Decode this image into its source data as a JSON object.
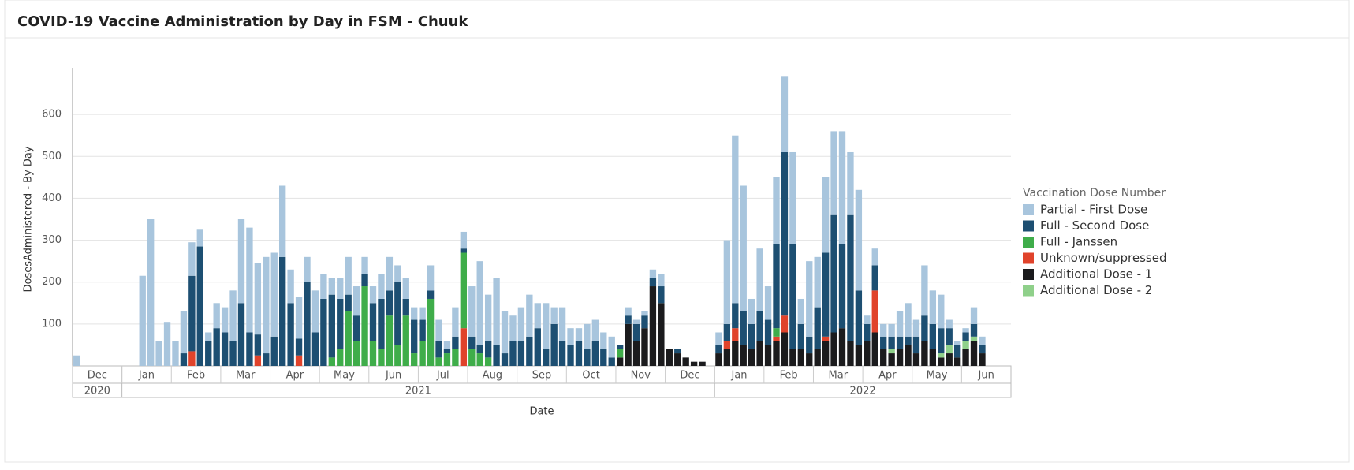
{
  "chart_data": {
    "type": "bar",
    "stacked": true,
    "title": "COVID-19 Vaccine Administration by Day in FSM - Chuuk",
    "x_label": "Date",
    "y_label": "DosesAdministered - By Day",
    "legend_title": "Vaccination Dose Number",
    "legend_position": "right",
    "grid": true,
    "ylim": [
      0,
      700
    ],
    "yticks": [
      100,
      200,
      300,
      400,
      500,
      600
    ],
    "x_groups": [
      {
        "year": "2020",
        "months": [
          "Dec"
        ]
      },
      {
        "year": "2021",
        "months": [
          "Jan",
          "Feb",
          "Mar",
          "Apr",
          "May",
          "Jun",
          "Jul",
          "Aug",
          "Sep",
          "Oct",
          "Nov",
          "Dec"
        ]
      },
      {
        "year": "2022",
        "months": [
          "Jan",
          "Feb",
          "Mar",
          "Apr",
          "May",
          "Jun"
        ]
      }
    ],
    "series": [
      {
        "name": "Partial - First Dose",
        "color": "#a8c5dd",
        "values": [
          [
            25,
            0,
            0,
            0,
            0,
            0
          ],
          [
            0,
            0,
            215,
            350,
            60,
            105
          ],
          [
            60,
            100,
            80,
            40,
            20,
            60
          ],
          [
            60,
            120,
            200,
            250,
            170,
            230
          ],
          [
            200,
            170,
            80,
            100,
            60,
            100
          ],
          [
            60,
            40,
            50,
            90,
            70,
            40
          ],
          [
            40,
            60,
            80,
            40,
            50,
            30
          ],
          [
            30,
            60,
            50,
            20,
            70,
            40
          ],
          [
            120,
            200,
            110,
            160,
            100,
            60
          ],
          [
            80,
            100,
            60,
            110,
            40,
            80
          ],
          [
            40,
            30,
            60,
            50,
            40,
            50
          ],
          [
            0,
            20,
            10,
            10,
            20,
            30
          ],
          [
            0,
            0,
            0,
            0,
            0,
            0
          ],
          [
            30,
            200,
            400,
            300,
            60,
            150
          ],
          [
            80,
            160,
            180,
            220,
            60,
            180
          ],
          [
            120,
            180,
            200,
            270,
            150,
            240
          ],
          [
            20,
            40,
            30,
            30,
            60,
            80
          ],
          [
            40,
            120,
            80,
            80,
            20,
            10
          ],
          [
            10,
            40,
            20,
            0,
            0,
            0
          ]
        ]
      },
      {
        "name": "Full - Second Dose",
        "color": "#1d4f72",
        "values": [
          [
            0,
            0,
            0,
            0,
            0,
            0
          ],
          [
            0,
            0,
            0,
            0,
            0,
            0
          ],
          [
            0,
            30,
            180,
            285,
            60,
            90
          ],
          [
            80,
            60,
            150,
            80,
            50,
            30
          ],
          [
            70,
            260,
            150,
            40,
            200,
            80
          ],
          [
            160,
            150,
            120,
            40,
            60,
            30
          ],
          [
            90,
            120,
            60,
            150,
            40,
            80
          ],
          [
            50,
            20,
            40,
            10,
            30,
            10
          ],
          [
            30,
            20,
            40,
            50,
            30,
            60
          ],
          [
            60,
            70,
            90,
            40,
            100,
            60
          ],
          [
            50,
            60,
            40,
            60,
            40,
            20
          ],
          [
            10,
            20,
            40,
            30,
            20,
            40
          ],
          [
            0,
            10,
            0,
            0,
            0,
            0
          ],
          [
            20,
            40,
            60,
            80,
            60,
            70
          ],
          [
            60,
            200,
            390,
            250,
            60,
            40
          ],
          [
            100,
            200,
            280,
            200,
            300,
            130
          ],
          [
            40,
            60,
            30,
            30,
            30,
            20
          ],
          [
            40,
            60,
            60,
            60,
            40,
            30
          ],
          [
            20,
            30,
            20,
            0,
            0,
            0
          ]
        ]
      },
      {
        "name": "Full - Janssen",
        "color": "#3fad4a",
        "values": [
          [
            0,
            0,
            0,
            0,
            0,
            0
          ],
          [
            0,
            0,
            0,
            0,
            0,
            0
          ],
          [
            0,
            0,
            0,
            0,
            0,
            0
          ],
          [
            0,
            0,
            0,
            0,
            0,
            0
          ],
          [
            0,
            0,
            0,
            0,
            0,
            0
          ],
          [
            0,
            20,
            40,
            130,
            60,
            190
          ],
          [
            60,
            40,
            120,
            50,
            120,
            30
          ],
          [
            60,
            160,
            20,
            30,
            40,
            180
          ],
          [
            40,
            30,
            20,
            0,
            0,
            0
          ],
          [
            0,
            0,
            0,
            0,
            0,
            0
          ],
          [
            0,
            0,
            0,
            0,
            0,
            0
          ],
          [
            20,
            0,
            0,
            0,
            0,
            0
          ],
          [
            0,
            0,
            0,
            0,
            0,
            0
          ],
          [
            0,
            0,
            0,
            0,
            0,
            0
          ],
          [
            0,
            20,
            0,
            0,
            0,
            0
          ],
          [
            0,
            0,
            0,
            0,
            0,
            0
          ],
          [
            0,
            0,
            0,
            0,
            0,
            0
          ],
          [
            0,
            0,
            0,
            0,
            0,
            0
          ],
          [
            0,
            0,
            0,
            0,
            0,
            0
          ]
        ]
      },
      {
        "name": "Unknown/suppressed",
        "color": "#e0432b",
        "values": [
          [
            0,
            0,
            0,
            0,
            0,
            0
          ],
          [
            0,
            0,
            0,
            0,
            0,
            0
          ],
          [
            0,
            0,
            35,
            0,
            0,
            0
          ],
          [
            0,
            0,
            0,
            0,
            25,
            0
          ],
          [
            0,
            0,
            0,
            25,
            0,
            0
          ],
          [
            0,
            0,
            0,
            0,
            0,
            0
          ],
          [
            0,
            0,
            0,
            0,
            0,
            0
          ],
          [
            0,
            0,
            0,
            0,
            0,
            90
          ],
          [
            0,
            0,
            0,
            0,
            0,
            0
          ],
          [
            0,
            0,
            0,
            0,
            0,
            0
          ],
          [
            0,
            0,
            0,
            0,
            0,
            0
          ],
          [
            0,
            0,
            0,
            0,
            0,
            0
          ],
          [
            0,
            0,
            0,
            0,
            0,
            0
          ],
          [
            0,
            20,
            30,
            0,
            0,
            0
          ],
          [
            0,
            10,
            40,
            0,
            0,
            0
          ],
          [
            0,
            10,
            0,
            0,
            0,
            0
          ],
          [
            0,
            100,
            0,
            0,
            0,
            0
          ],
          [
            0,
            0,
            0,
            0,
            0,
            0
          ],
          [
            0,
            0,
            0,
            0,
            0,
            0
          ]
        ]
      },
      {
        "name": "Additional Dose - 1",
        "color": "#1b1b1d",
        "values": [
          [
            0,
            0,
            0,
            0,
            0,
            0
          ],
          [
            0,
            0,
            0,
            0,
            0,
            0
          ],
          [
            0,
            0,
            0,
            0,
            0,
            0
          ],
          [
            0,
            0,
            0,
            0,
            0,
            0
          ],
          [
            0,
            0,
            0,
            0,
            0,
            0
          ],
          [
            0,
            0,
            0,
            0,
            0,
            0
          ],
          [
            0,
            0,
            0,
            0,
            0,
            0
          ],
          [
            0,
            0,
            0,
            0,
            0,
            0
          ],
          [
            0,
            0,
            0,
            0,
            0,
            0
          ],
          [
            0,
            0,
            0,
            0,
            0,
            0
          ],
          [
            0,
            0,
            0,
            0,
            0,
            0
          ],
          [
            20,
            100,
            60,
            90,
            190,
            150
          ],
          [
            40,
            30,
            20,
            10,
            10,
            0
          ],
          [
            30,
            40,
            60,
            50,
            40,
            60
          ],
          [
            50,
            60,
            80,
            40,
            40,
            30
          ],
          [
            40,
            60,
            80,
            90,
            60,
            50
          ],
          [
            60,
            80,
            40,
            30,
            40,
            50
          ],
          [
            30,
            60,
            40,
            20,
            30,
            20
          ],
          [
            40,
            60,
            30,
            0,
            0,
            0
          ]
        ]
      },
      {
        "name": "Additional Dose - 2",
        "color": "#8fd08a",
        "values": [
          [
            0,
            0,
            0,
            0,
            0,
            0
          ],
          [
            0,
            0,
            0,
            0,
            0,
            0
          ],
          [
            0,
            0,
            0,
            0,
            0,
            0
          ],
          [
            0,
            0,
            0,
            0,
            0,
            0
          ],
          [
            0,
            0,
            0,
            0,
            0,
            0
          ],
          [
            0,
            0,
            0,
            0,
            0,
            0
          ],
          [
            0,
            0,
            0,
            0,
            0,
            0
          ],
          [
            0,
            0,
            0,
            0,
            0,
            0
          ],
          [
            0,
            0,
            0,
            0,
            0,
            0
          ],
          [
            0,
            0,
            0,
            0,
            0,
            0
          ],
          [
            0,
            0,
            0,
            0,
            0,
            0
          ],
          [
            0,
            0,
            0,
            0,
            0,
            0
          ],
          [
            0,
            0,
            0,
            0,
            0,
            0
          ],
          [
            0,
            0,
            0,
            0,
            0,
            0
          ],
          [
            0,
            0,
            0,
            0,
            0,
            0
          ],
          [
            0,
            0,
            0,
            0,
            0,
            0
          ],
          [
            0,
            0,
            0,
            10,
            0,
            0
          ],
          [
            0,
            0,
            0,
            10,
            20,
            0
          ],
          [
            20,
            10,
            0,
            0,
            0,
            0
          ]
        ]
      }
    ]
  }
}
